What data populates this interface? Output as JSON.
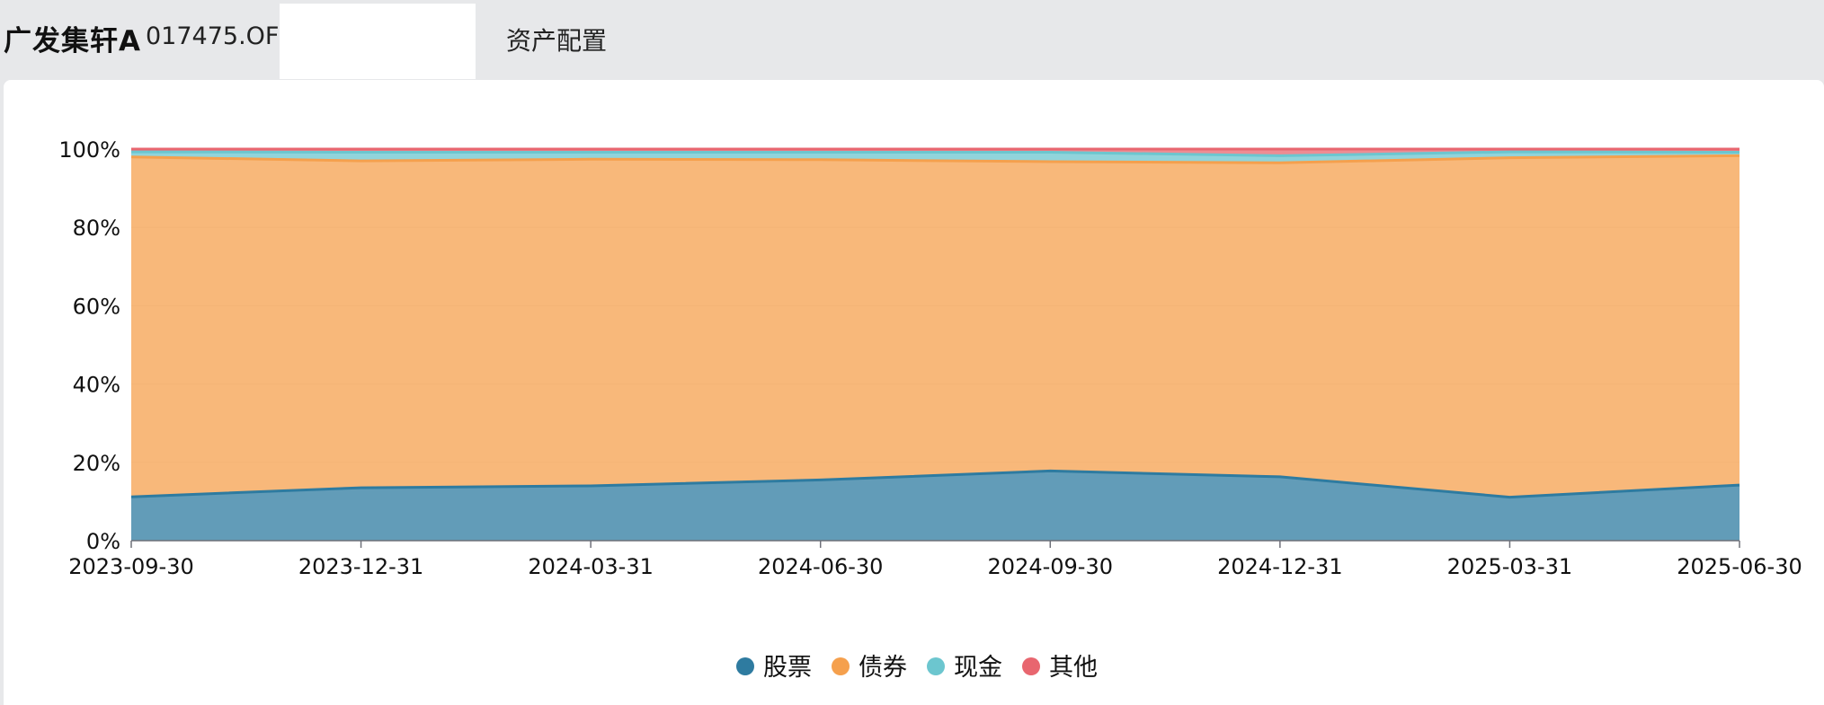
{
  "header": {
    "fund_name": "广发集轩A",
    "fund_code": "017475.OF",
    "tab_label": "资产配置"
  },
  "chart_data": {
    "type": "area",
    "stacked": true,
    "x": [
      "2023-09-30",
      "2023-12-31",
      "2024-03-31",
      "2024-06-30",
      "2024-09-30",
      "2024-12-31",
      "2025-03-31",
      "2025-06-30"
    ],
    "y_ticks": [
      "0%",
      "20%",
      "40%",
      "60%",
      "80%",
      "100%"
    ],
    "ylim": [
      0,
      100
    ],
    "series": [
      {
        "name": "股票",
        "color": "#2e7ba0",
        "values": [
          11.2,
          13.5,
          14.0,
          15.5,
          17.8,
          16.3,
          11.1,
          14.2
        ]
      },
      {
        "name": "债券",
        "color": "#f5a04d",
        "values": [
          86.8,
          83.5,
          83.4,
          81.8,
          79.0,
          80.2,
          86.7,
          84.1
        ]
      },
      {
        "name": "现金",
        "color": "#6cc6cf",
        "values": [
          1.3,
          2.2,
          1.8,
          1.9,
          2.4,
          1.8,
          1.5,
          0.9
        ]
      },
      {
        "name": "其他",
        "color": "#e8666f",
        "values": [
          0.7,
          0.8,
          0.8,
          0.8,
          0.8,
          1.7,
          0.7,
          0.8
        ]
      }
    ],
    "grid": true,
    "legend_position": "bottom"
  }
}
